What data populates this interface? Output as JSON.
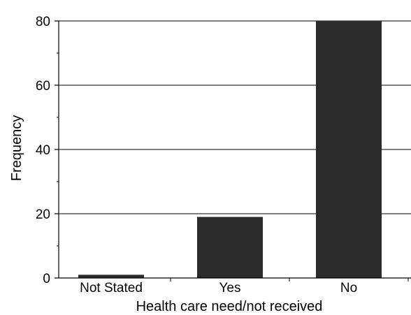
{
  "chart_data": {
    "type": "bar",
    "title": "",
    "xlabel": "Health care need/not received",
    "ylabel": "Frequency",
    "categories": [
      "Not Stated",
      "Yes",
      "No"
    ],
    "values": [
      1,
      19,
      80
    ],
    "ylim": [
      0,
      80
    ],
    "yticks": [
      "0",
      "20",
      "40",
      "60",
      "80"
    ],
    "grid": true,
    "bar_color": "#2b2b2b"
  }
}
